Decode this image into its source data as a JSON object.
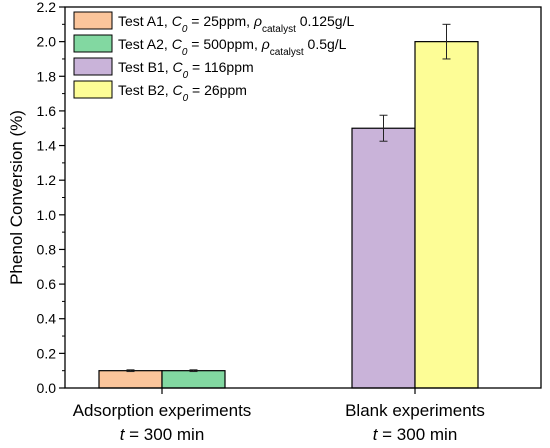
{
  "chart_data": {
    "type": "bar",
    "ylabel": "Phenol Conversion (%)",
    "ylim": [
      0,
      2.2
    ],
    "yticks": [
      {
        "value": 0.0,
        "label": "0.0"
      },
      {
        "value": 0.2,
        "label": "0.2"
      },
      {
        "value": 0.4,
        "label": "0.4"
      },
      {
        "value": 0.6,
        "label": "0.6"
      },
      {
        "value": 0.8,
        "label": "0.8"
      },
      {
        "value": 1.0,
        "label": "1.0"
      },
      {
        "value": 1.2,
        "label": "1.2"
      },
      {
        "value": 1.4,
        "label": "1.4"
      },
      {
        "value": 1.6,
        "label": "1.6"
      },
      {
        "value": 1.8,
        "label": "1.8"
      },
      {
        "value": 2.0,
        "label": "2.0"
      },
      {
        "value": 2.2,
        "label": "2.2"
      }
    ],
    "grid": false,
    "legend_position": "top-left",
    "categories": [
      {
        "line1": "Adsorption experiments",
        "line2_italic": "t",
        "line2_rest": " = 300 min"
      },
      {
        "line1": "Blank experiments",
        "line2_italic": "t",
        "line2_rest": " = 300 min"
      }
    ],
    "series": [
      {
        "color": "#fbc59b",
        "category_index": 0,
        "value": 0.1,
        "error": 0.005,
        "legend": {
          "name": "Test A1, ",
          "c": "C",
          "c_sub": "0",
          "c_val": " = 25ppm, ",
          "rho": "ρ",
          "rho_sub": "catalyst",
          "rho_val": " 0.125g/L"
        }
      },
      {
        "color": "#82d8a1",
        "category_index": 0,
        "value": 0.1,
        "error": 0.005,
        "legend": {
          "name": "Test A2, ",
          "c": "C",
          "c_sub": "0",
          "c_val": " = 500ppm, ",
          "rho": "ρ",
          "rho_sub": "catalyst",
          "rho_val": " 0.5g/L"
        }
      },
      {
        "color": "#c9b3d9",
        "category_index": 1,
        "value": 1.5,
        "error": 0.075,
        "legend": {
          "name": "Test B1, ",
          "c": "C",
          "c_sub": "0",
          "c_val": " = 116ppm"
        }
      },
      {
        "color": "#fdfd96",
        "category_index": 1,
        "value": 2.0,
        "error": 0.1,
        "legend": {
          "name": "Test B2, ",
          "c": "C",
          "c_sub": "0",
          "c_val": " = 26ppm"
        }
      }
    ]
  }
}
